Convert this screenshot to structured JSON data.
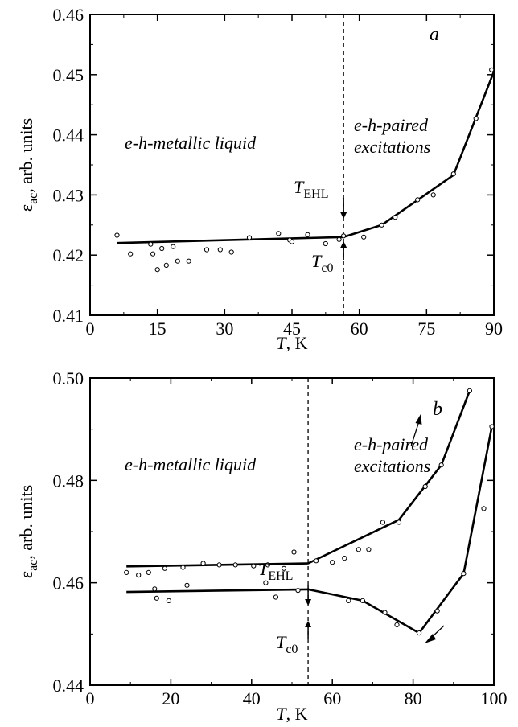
{
  "chart_data": [
    {
      "type": "scatter",
      "panel_label": "a",
      "xlabel": "T, K",
      "ylabel": "ε_ac, arb. units",
      "xlim": [
        0,
        90
      ],
      "ylim": [
        0.41,
        0.46
      ],
      "xticks": [
        0,
        15,
        30,
        45,
        60,
        75,
        90
      ],
      "yticks": [
        0.41,
        0.42,
        0.43,
        0.44,
        0.45,
        0.46
      ],
      "ytick_labels": [
        "0.41",
        "0.42",
        "0.43",
        "0.44",
        "0.45",
        "0.46"
      ],
      "points": [
        [
          6,
          0.4233
        ],
        [
          9,
          0.4202
        ],
        [
          13.5,
          0.4218
        ],
        [
          14,
          0.4202
        ],
        [
          15,
          0.4176
        ],
        [
          16,
          0.4211
        ],
        [
          17,
          0.4183
        ],
        [
          18.5,
          0.4214
        ],
        [
          19.5,
          0.419
        ],
        [
          22,
          0.419
        ],
        [
          26,
          0.4209
        ],
        [
          29,
          0.4209
        ],
        [
          31.5,
          0.4205
        ],
        [
          35.5,
          0.4229
        ],
        [
          42,
          0.4236
        ],
        [
          44.5,
          0.4225
        ],
        [
          45,
          0.4222
        ],
        [
          48.5,
          0.4234
        ],
        [
          52.5,
          0.4219
        ],
        [
          55.5,
          0.4226
        ],
        [
          56.5,
          0.4232
        ],
        [
          61,
          0.423
        ],
        [
          65,
          0.425
        ],
        [
          68,
          0.4263
        ],
        [
          73,
          0.4292
        ],
        [
          76.5,
          0.43
        ],
        [
          81,
          0.4335
        ],
        [
          86,
          0.4427
        ],
        [
          89.5,
          0.4508
        ]
      ],
      "line": [
        [
          6,
          0.422
        ],
        [
          56.5,
          0.423
        ],
        [
          65,
          0.425
        ],
        [
          81,
          0.4333
        ],
        [
          90,
          0.4505
        ]
      ],
      "vline_x": 56.5,
      "annotations": {
        "left_text": "e-h-metallic liquid",
        "right_line1": "e-h-paired",
        "right_line2": "excitations",
        "t_ehl": "T",
        "t_ehl_sub": "EHL",
        "t_c0": "T",
        "t_c0_sub": "c0"
      }
    },
    {
      "type": "scatter",
      "panel_label": "b",
      "xlabel": "T, K",
      "ylabel": "ε_ac, arb. units",
      "xlim": [
        0,
        100
      ],
      "ylim": [
        0.44,
        0.5
      ],
      "xticks": [
        0,
        20,
        40,
        60,
        80,
        100
      ],
      "yticks": [
        0.44,
        0.46,
        0.48,
        0.5
      ],
      "ytick_labels": [
        "0.44",
        "0.46",
        "0.48",
        "0.50"
      ],
      "points": [
        [
          9,
          0.462
        ],
        [
          12,
          0.4615
        ],
        [
          14.5,
          0.462
        ],
        [
          16,
          0.4588
        ],
        [
          16.5,
          0.457
        ],
        [
          18.5,
          0.4628
        ],
        [
          19.5,
          0.4565
        ],
        [
          23,
          0.463
        ],
        [
          24,
          0.4595
        ],
        [
          28,
          0.4638
        ],
        [
          32,
          0.4635
        ],
        [
          36,
          0.4635
        ],
        [
          40.5,
          0.4633
        ],
        [
          43.5,
          0.46
        ],
        [
          44,
          0.4635
        ],
        [
          46,
          0.4572
        ],
        [
          48,
          0.4628
        ],
        [
          50.5,
          0.466
        ],
        [
          51.5,
          0.4585
        ],
        [
          56,
          0.4643
        ],
        [
          60,
          0.464
        ],
        [
          63,
          0.4648
        ],
        [
          64,
          0.4565
        ],
        [
          66.5,
          0.4665
        ],
        [
          67.5,
          0.4565
        ],
        [
          69,
          0.4665
        ],
        [
          72.5,
          0.4718
        ],
        [
          73,
          0.4542
        ],
        [
          76,
          0.4518
        ],
        [
          76.5,
          0.4718
        ],
        [
          81.5,
          0.4502
        ],
        [
          83,
          0.4788
        ],
        [
          86,
          0.4545
        ],
        [
          87,
          0.483
        ],
        [
          92.5,
          0.4618
        ],
        [
          94,
          0.4975
        ],
        [
          97.5,
          0.4745
        ],
        [
          99.5,
          0.4905
        ]
      ],
      "line_up": [
        [
          9,
          0.4632
        ],
        [
          54,
          0.4638
        ],
        [
          76.5,
          0.4723
        ],
        [
          87,
          0.483
        ],
        [
          94,
          0.4975
        ]
      ],
      "line_down": [
        [
          9,
          0.4582
        ],
        [
          54,
          0.4587
        ],
        [
          67.5,
          0.4565
        ],
        [
          81.5,
          0.4502
        ],
        [
          92.5,
          0.4618
        ],
        [
          99.5,
          0.4905
        ]
      ],
      "vline_x": 54,
      "annotations": {
        "left_text": "e-h-metallic liquid",
        "right_line1": "e-h-paired",
        "right_line2": "excitations",
        "t_ehl": "T",
        "t_ehl_sub": "EHL",
        "t_c0": "T",
        "t_c0_sub": "c0"
      }
    }
  ]
}
